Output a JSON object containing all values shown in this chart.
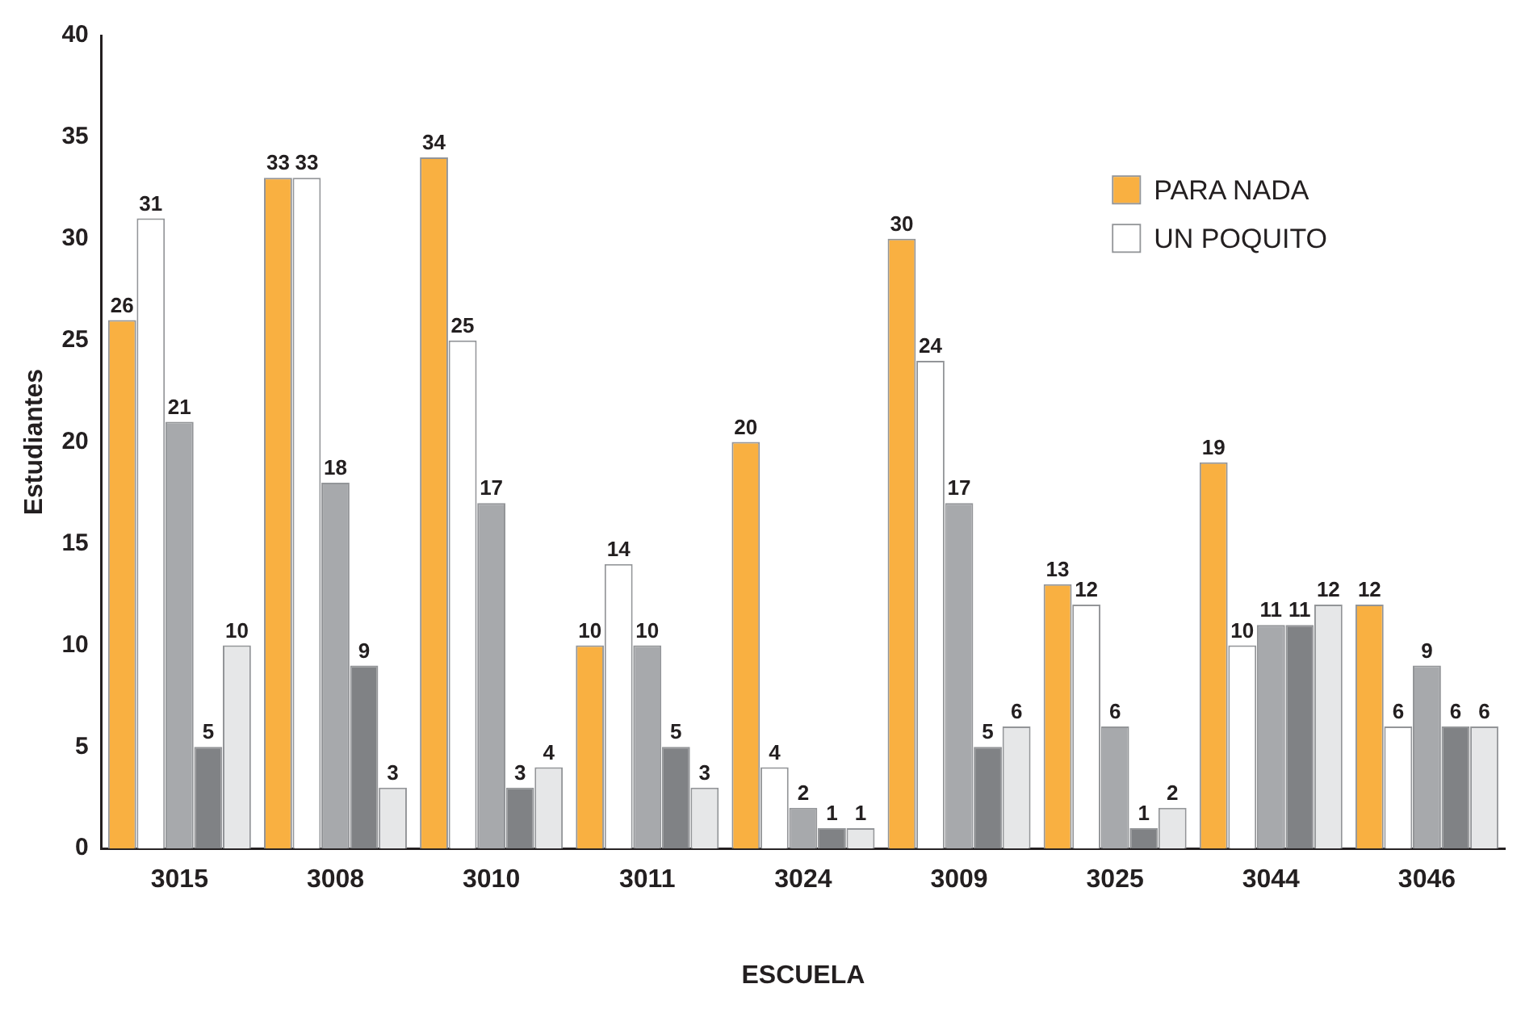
{
  "chart_data": {
    "type": "bar",
    "xlabel": "ESCUELA",
    "ylabel": "Estudiantes",
    "categories": [
      "3015",
      "3008",
      "3010",
      "3011",
      "3024",
      "3009",
      "3025",
      "3044",
      "3046"
    ],
    "series": [
      {
        "name": "PARA NADA",
        "color": "#f9b041",
        "values": [
          26,
          33,
          34,
          10,
          20,
          30,
          13,
          19,
          12
        ]
      },
      {
        "name": "UN POQUITO",
        "color": "#ffffff",
        "values": [
          31,
          33,
          25,
          14,
          4,
          24,
          12,
          10,
          6
        ]
      },
      {
        "color": "#a7a9ac",
        "values": [
          21,
          18,
          17,
          10,
          2,
          17,
          6,
          11,
          9
        ]
      },
      {
        "color": "#808285",
        "values": [
          5,
          9,
          3,
          5,
          1,
          5,
          1,
          11,
          6
        ]
      },
      {
        "color": "#e6e7e8",
        "values": [
          10,
          3,
          4,
          3,
          1,
          6,
          2,
          12,
          6
        ]
      }
    ],
    "ylim": [
      0,
      40
    ],
    "yticks": [
      0,
      5,
      10,
      15,
      20,
      25,
      30,
      35,
      40
    ],
    "grid": false,
    "legend": "top right",
    "data_labels": true
  }
}
